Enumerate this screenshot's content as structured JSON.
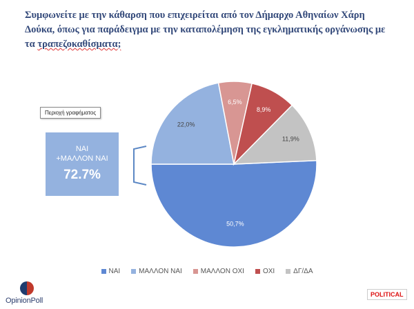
{
  "title": {
    "line1": "Συμφωνείτε με την κάθαρση που επιχειρείται από τον Δήμαρχο Αθηναίων Χάρη",
    "line2": "Δούκα, όπως για παράδειγμα με την καταπολέμηση της εγκληματικής οργάνωσης με",
    "line3_plain": "τα ",
    "line3_marked": "τραπεζοκαθίσματα;"
  },
  "tooltip": "Περιοχή γραφήματος",
  "callout": {
    "line1": "ΝΑΙ",
    "line2": "+ΜΑΛΛΟΝ ΝΑΙ",
    "value": "72.7%"
  },
  "chart_data": {
    "type": "pie",
    "slices": [
      {
        "label": "ΝΑΙ",
        "value": 50.7,
        "display": "50,7%",
        "color": "#5e88d3"
      },
      {
        "label": "ΜΑΛΛΟΝ ΝΑΙ",
        "value": 22.0,
        "display": "22,0%",
        "color": "#94b2df"
      },
      {
        "label": "ΜΑΛΛΟΝ ΟΧΙ",
        "value": 6.5,
        "display": "6,5%",
        "color": "#d89693"
      },
      {
        "label": "ΟΧΙ",
        "value": 8.9,
        "display": "8,9%",
        "color": "#bf4f4f"
      },
      {
        "label": "ΔΓ/ΔΑ",
        "value": 11.9,
        "display": "11,9%",
        "color": "#c3c3c3"
      }
    ],
    "legend_position": "bottom"
  },
  "logo": {
    "text": "OpinionPoll"
  },
  "badge": {
    "text": "POLITICAL"
  }
}
